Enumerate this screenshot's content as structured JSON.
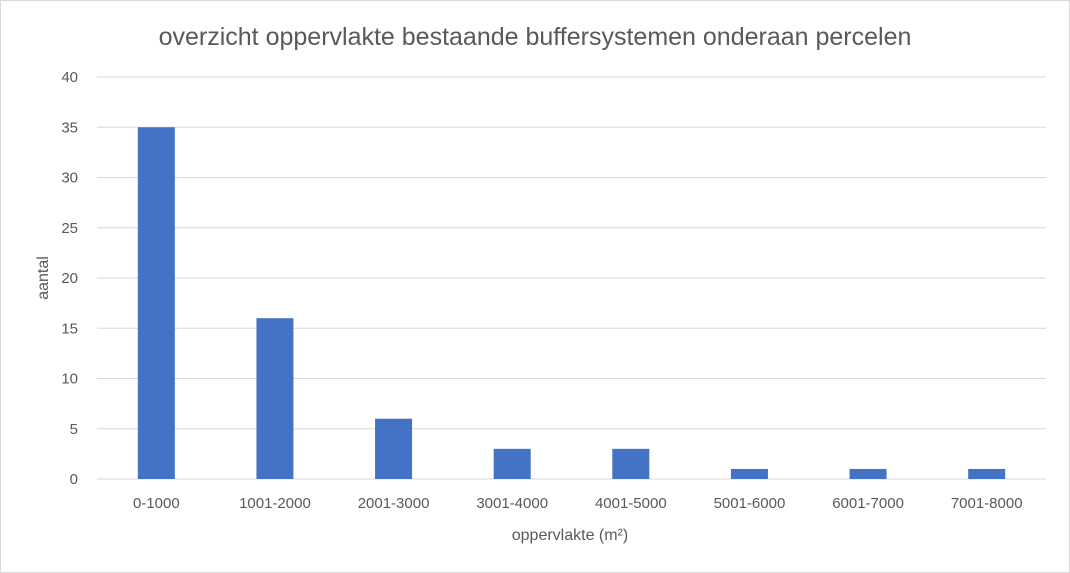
{
  "chart_data": {
    "type": "bar",
    "title": "overzicht oppervlakte bestaande buffersystemen onderaan percelen",
    "xlabel": "oppervlakte (m²)",
    "ylabel": "aantal",
    "categories": [
      "0-1000",
      "1001-2000",
      "2001-3000",
      "3001-4000",
      "4001-5000",
      "5001-6000",
      "6001-7000",
      "7001-8000"
    ],
    "series": [
      {
        "values": [
          35,
          16,
          6,
          3,
          3,
          1,
          1,
          1
        ]
      }
    ],
    "ylim": [
      0,
      40
    ],
    "yticks": [
      0,
      5,
      10,
      15,
      20,
      25,
      30,
      35,
      40
    ],
    "grid": true,
    "legend": "none",
    "colors": {
      "bar": "#4472C4",
      "grid": "#d9d9d9",
      "text": "#595959"
    }
  }
}
